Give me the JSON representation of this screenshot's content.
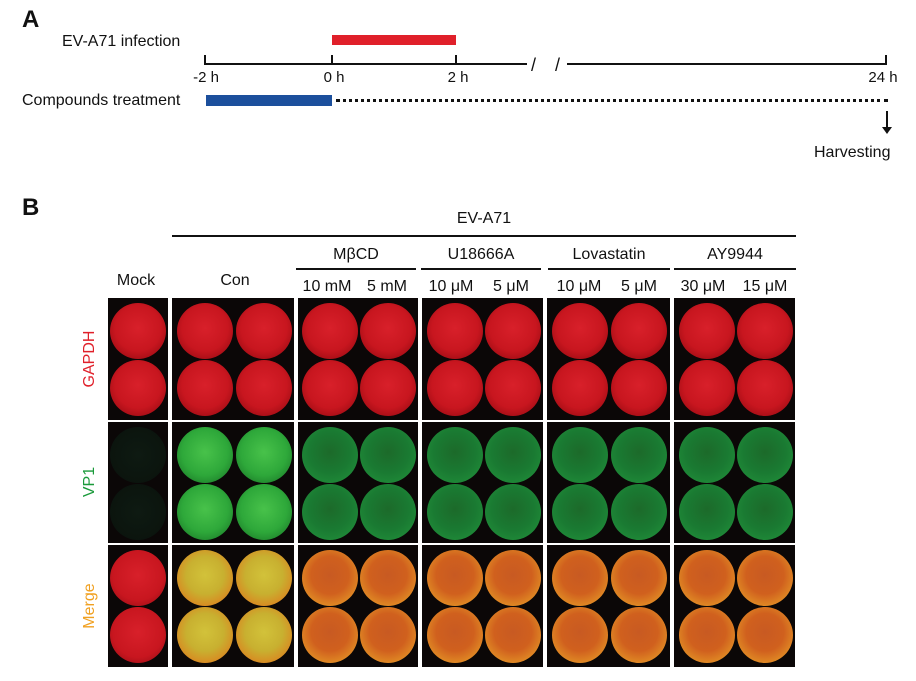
{
  "panel_a": {
    "letter": "A",
    "infection_label": "EV-A71 infection",
    "treatment_label": "Compounds treatment",
    "timepoints": [
      "-2 h",
      "0 h",
      "2 h",
      "24 h"
    ],
    "break_marks": "/ /",
    "harvest_label": "Harvesting",
    "colors": {
      "infection_bar": "#e0202a",
      "treatment_bar": "#1c4f9c"
    }
  },
  "panel_b": {
    "letter": "B",
    "virus_label": "EV-A71",
    "mock_label": "Mock",
    "con_label": "Con",
    "groups": [
      {
        "name": "MβCD",
        "doses": [
          "10 mM",
          "5 mM"
        ]
      },
      {
        "name": "U18666A",
        "doses": [
          "10 μM",
          "5 μM"
        ]
      },
      {
        "name": "Lovastatin",
        "doses": [
          "10 μM",
          "5 μM"
        ]
      },
      {
        "name": "AY9944",
        "doses": [
          "30 μM",
          "15 μM"
        ]
      }
    ],
    "rows": [
      {
        "label": "GAPDH",
        "color": "#e0202a"
      },
      {
        "label": "VP1",
        "color": "#1a9a3a"
      },
      {
        "label": "Merge",
        "color": "#f0a020"
      }
    ]
  }
}
